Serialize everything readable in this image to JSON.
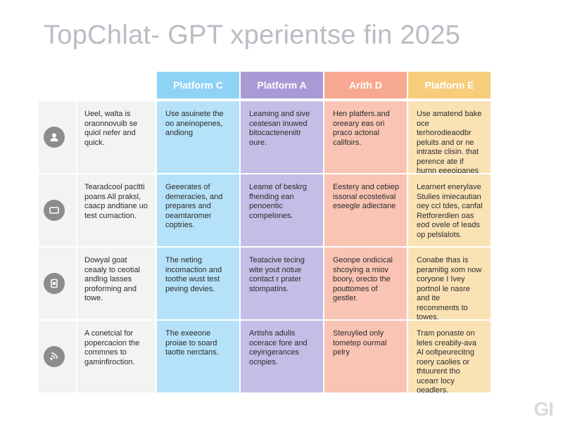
{
  "chart_data": {
    "type": "table",
    "title": "TopChlat- GPT xperientse fin 2025",
    "columns": [
      {
        "label": "Platform C",
        "color": "#8fd3f4"
      },
      {
        "label": "Platform A",
        "color": "#a99ad6"
      },
      {
        "label": "Arith D",
        "color": "#f6a890"
      },
      {
        "label": "Platform E",
        "color": "#f7cd7c"
      }
    ],
    "cell_colors": [
      "#b5e2f8",
      "#c4bde6",
      "#f9c4b4",
      "#fbe2b5"
    ],
    "rows": [
      {
        "icon": "user-icon",
        "description": "Ueel, walta is oraonnovuib se quiol nefer and quick.",
        "cells": [
          "Use asuinete the oo aneinopenes, andiong",
          "Leaming and sive ceatesan inuwed bitocacteneniitr oure.",
          "Hen platfers.and oreeary eas ori praco actonal califoirs.",
          "Use amatend bake oce terhorodieaodbr peluits and or ne intraste clisin. that perence ate if hurnn eeeoipanes"
        ]
      },
      {
        "icon": "keyboard-icon",
        "description": "Tearadcool pacltti poans All praksl, caacp andtiane uo test cumaction.",
        "cells": [
          "Geeerates of demeracies, and prepares and oeamtaromer coptries.",
          "Leame of beskrg fhending ean penoentic compelones.",
          "Eestery and cebiep issonal ecostetival eseegle adiectane",
          "Learnert enerylave Stulies imiecautian oey ccl tdes, canfal Retforerdien oas eod ovele of Ieads op pelslalots."
        ]
      },
      {
        "icon": "device-icon",
        "description": "Dowyal goat ceaaly to ceotial andlng lasses proforming and towe.",
        "cells": [
          "The neting incomaction and toothe wust test peving devies.",
          "Teatacive tecing wite yout notue contact r prater stompatins.",
          "Geonpe ondicical shcoying a miov boory, orecto the pouttomes of gestler.",
          "Conabe thas is peramitig xom now coryone I Ivey portnol le nasre and ite recomments to towes."
        ]
      },
      {
        "icon": "network-icon",
        "description": "A conetcial for popercacion the commnes to gaminfiroction.",
        "cells": [
          "The exeeone proiae to soard taotte nerctans.",
          "Artishs adulis ocerace fore and ceyingerances ocnpies.",
          "Steruylied only tometep ourmal pelry",
          "Tram ponaste on leles creabily-ava Al ooltpeurecitng roery caolies or thtuurent tho ucearr locy oeadlers."
        ]
      }
    ],
    "watermark": "GI"
  }
}
